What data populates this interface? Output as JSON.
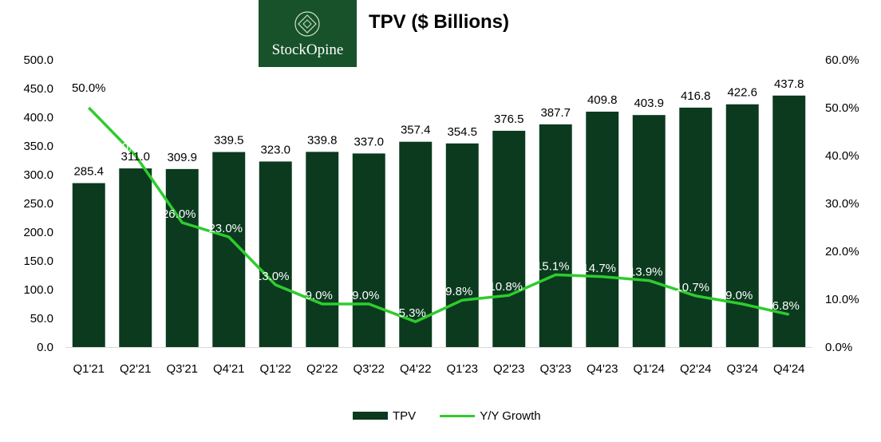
{
  "header": {
    "logo_text": "StockOpine",
    "title": "TPV ($ Billions)"
  },
  "chart_data": {
    "type": "bar",
    "title": "TPV ($ Billions)",
    "categories": [
      "Q1'21",
      "Q2'21",
      "Q3'21",
      "Q4'21",
      "Q1'22",
      "Q2'22",
      "Q3'22",
      "Q4'22",
      "Q1'23",
      "Q2'23",
      "Q3'23",
      "Q4'23",
      "Q1'24",
      "Q2'24",
      "Q3'24",
      "Q4'24"
    ],
    "series": [
      {
        "name": "TPV",
        "type": "bar",
        "axis": "left",
        "values": [
          285.4,
          311.0,
          309.9,
          339.5,
          323.0,
          339.8,
          337.0,
          357.4,
          354.5,
          376.5,
          387.7,
          409.8,
          403.9,
          416.8,
          422.6,
          437.8
        ],
        "labels": [
          "285.4",
          "311.0",
          "309.9",
          "339.5",
          "323.0",
          "339.8",
          "337.0",
          "357.4",
          "354.5",
          "376.5",
          "387.7",
          "409.8",
          "403.9",
          "416.8",
          "422.6",
          "437.8"
        ],
        "color": "#0b3a1f"
      },
      {
        "name": "Y/Y Growth",
        "type": "line",
        "axis": "right",
        "values": [
          50.0,
          40.0,
          26.0,
          23.0,
          13.0,
          9.0,
          9.0,
          5.3,
          9.8,
          10.8,
          15.1,
          14.7,
          13.9,
          10.7,
          9.0,
          6.8
        ],
        "labels": [
          "50.0%",
          "40.0%",
          "26.0%",
          "23.0%",
          "13.0%",
          "9.0%",
          "9.0%",
          "5.3%",
          "9.8%",
          "10.8%",
          "15.1%",
          "14.7%",
          "13.9%",
          "10.7%",
          "9.0%",
          "6.8%"
        ],
        "color": "#2ecc2e"
      }
    ],
    "y_left": {
      "min": 0,
      "max": 500,
      "ticks": [
        "0.0",
        "50.0",
        "100.0",
        "150.0",
        "200.0",
        "250.0",
        "300.0",
        "350.0",
        "400.0",
        "450.0",
        "500.0"
      ]
    },
    "y_right": {
      "min": 0,
      "max": 60,
      "ticks": [
        "0.0%",
        "10.0%",
        "20.0%",
        "30.0%",
        "40.0%",
        "50.0%",
        "60.0%"
      ]
    },
    "legend": {
      "position": "bottom",
      "items": [
        "TPV",
        "Y/Y Growth"
      ]
    },
    "grid": false
  }
}
